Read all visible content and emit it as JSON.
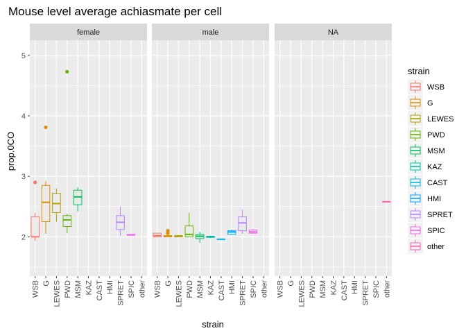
{
  "chart_data": {
    "type": "boxplot",
    "title": "Mouse level average achiasmate per cell",
    "xlabel": "strain",
    "ylabel": "prop.0CO",
    "ylim": [
      1.35,
      5.25
    ],
    "yticks": [
      2,
      3,
      4,
      5
    ],
    "categories": [
      "WSB",
      "G",
      "LEWES",
      "PWD",
      "MSM",
      "KAZ",
      "CAST",
      "HMI",
      "SPRET",
      "SPIC",
      "other"
    ],
    "colors": {
      "WSB": "#F8766D",
      "G": "#DB8E00",
      "LEWES": "#AEA200",
      "PWD": "#64B200",
      "MSM": "#00BD5C",
      "KAZ": "#00C1A7",
      "CAST": "#00BADE",
      "HMI": "#00A6FF",
      "SPRET": "#B385FF",
      "SPIC": "#EF67EB",
      "other": "#FF63B6"
    },
    "legend": {
      "title": "strain",
      "position": "right",
      "entries": [
        "WSB",
        "G",
        "LEWES",
        "PWD",
        "MSM",
        "KAZ",
        "CAST",
        "HMI",
        "SPRET",
        "SPIC",
        "other"
      ]
    },
    "panels": [
      {
        "name": "female",
        "boxes": [
          {
            "category": "WSB",
            "min": 1.93,
            "q1": 2.0,
            "median": 2.0,
            "q3": 2.33,
            "max": 2.4,
            "outliers": [
              2.9
            ]
          },
          {
            "category": "G",
            "min": 2.05,
            "q1": 2.25,
            "median": 2.57,
            "q3": 2.85,
            "max": 2.92,
            "outliers": [
              3.81
            ]
          },
          {
            "category": "LEWES",
            "min": 2.25,
            "q1": 2.4,
            "median": 2.55,
            "q3": 2.72,
            "max": 2.8,
            "outliers": []
          },
          {
            "category": "PWD",
            "min": 2.06,
            "q1": 2.17,
            "median": 2.28,
            "q3": 2.35,
            "max": 2.38,
            "outliers": [
              4.73
            ]
          },
          {
            "category": "MSM",
            "min": 2.42,
            "q1": 2.53,
            "median": 2.66,
            "q3": 2.77,
            "max": 2.82,
            "outliers": []
          },
          {
            "category": "SPRET",
            "min": 2.02,
            "q1": 2.12,
            "median": 2.24,
            "q3": 2.35,
            "max": 2.5,
            "outliers": []
          },
          {
            "category": "SPIC",
            "min": 2.03,
            "q1": 2.03,
            "median": 2.03,
            "q3": 2.04,
            "max": 2.04,
            "outliers": []
          }
        ]
      },
      {
        "name": "male",
        "boxes": [
          {
            "category": "WSB",
            "min": 2.0,
            "q1": 2.0,
            "median": 2.02,
            "q3": 2.06,
            "max": 2.06,
            "outliers": []
          },
          {
            "category": "G",
            "min": 2.0,
            "q1": 2.0,
            "median": 2.01,
            "q3": 2.02,
            "max": 2.03,
            "outliers": [
              2.06,
              2.1
            ]
          },
          {
            "category": "LEWES",
            "min": 2.0,
            "q1": 2.0,
            "median": 2.01,
            "q3": 2.02,
            "max": 2.03,
            "outliers": []
          },
          {
            "category": "PWD",
            "min": 2.0,
            "q1": 2.0,
            "median": 2.04,
            "q3": 2.18,
            "max": 2.4,
            "outliers": []
          },
          {
            "category": "MSM",
            "min": 1.9,
            "q1": 1.97,
            "median": 2.01,
            "q3": 2.04,
            "max": 2.08,
            "outliers": []
          },
          {
            "category": "KAZ",
            "min": 1.98,
            "q1": 1.99,
            "median": 2.0,
            "q3": 2.01,
            "max": 2.02,
            "outliers": []
          },
          {
            "category": "CAST",
            "min": 1.96,
            "q1": 1.96,
            "median": 1.96,
            "q3": 1.96,
            "max": 1.96,
            "outliers": []
          },
          {
            "category": "HMI",
            "min": 2.03,
            "q1": 2.04,
            "median": 2.08,
            "q3": 2.1,
            "max": 2.12,
            "outliers": []
          },
          {
            "category": "SPRET",
            "min": 2.05,
            "q1": 2.1,
            "median": 2.23,
            "q3": 2.33,
            "max": 2.45,
            "outliers": []
          },
          {
            "category": "SPIC",
            "min": 2.05,
            "q1": 2.06,
            "median": 2.08,
            "q3": 2.11,
            "max": 2.13,
            "outliers": []
          }
        ]
      },
      {
        "name": "NA",
        "boxes": [
          {
            "category": "other",
            "min": 2.58,
            "q1": 2.58,
            "median": 2.58,
            "q3": 2.58,
            "max": 2.58,
            "outliers": []
          }
        ]
      }
    ]
  }
}
